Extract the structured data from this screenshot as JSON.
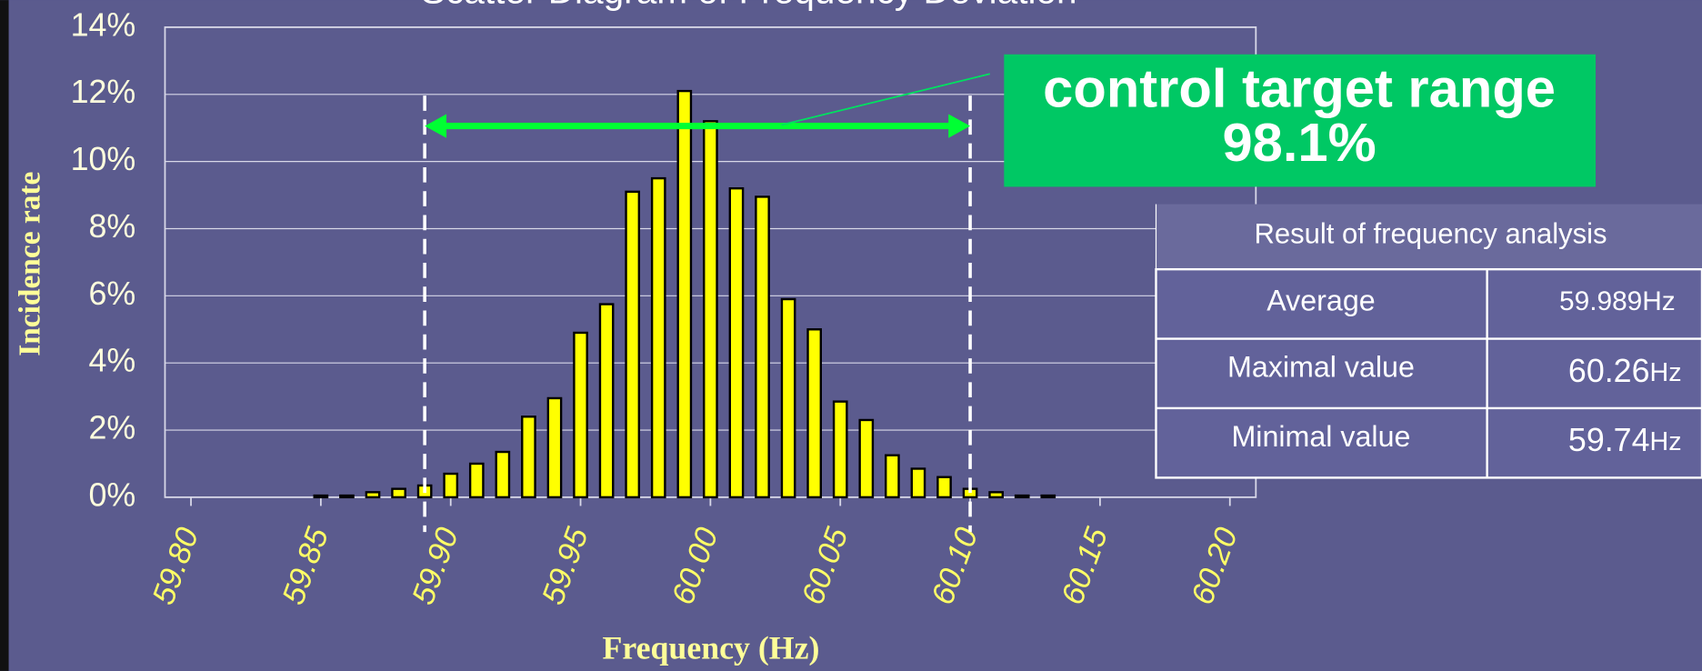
{
  "chart_data": {
    "type": "bar",
    "title": "Scatter Diagram of Frequency Deviation",
    "x_label": "Frequency (Hz)",
    "y_label": "Incidence rate",
    "x": [
      59.85,
      59.86,
      59.87,
      59.88,
      59.89,
      59.9,
      59.91,
      59.92,
      59.93,
      59.94,
      59.95,
      59.96,
      59.97,
      59.98,
      59.99,
      60.0,
      60.01,
      60.02,
      60.03,
      60.04,
      60.05,
      60.06,
      60.07,
      60.08,
      60.09,
      60.1,
      60.11,
      60.12,
      60.13
    ],
    "values": [
      0.05,
      0.05,
      0.15,
      0.25,
      0.35,
      0.7,
      1.0,
      1.35,
      2.4,
      2.95,
      4.9,
      5.75,
      9.1,
      9.5,
      12.1,
      11.2,
      9.2,
      8.95,
      5.9,
      5.0,
      2.85,
      2.3,
      1.25,
      0.85,
      0.6,
      0.25,
      0.15,
      0.05,
      0.05
    ],
    "color": "#ffff00",
    "xlim": [
      59.79,
      60.21
    ],
    "ylim": [
      0,
      14
    ],
    "xticks": [
      {
        "value": 59.8,
        "label": "59.80"
      },
      {
        "value": 59.85,
        "label": "59.85"
      },
      {
        "value": 59.9,
        "label": "59.90"
      },
      {
        "value": 59.95,
        "label": "59.95"
      },
      {
        "value": 60.0,
        "label": "60.00"
      },
      {
        "value": 60.05,
        "label": "60.05"
      },
      {
        "value": 60.1,
        "label": "60.10"
      },
      {
        "value": 60.15,
        "label": "60.15"
      },
      {
        "value": 60.2,
        "label": "60.20"
      }
    ],
    "yticks": [
      {
        "value": 0,
        "label": "0%"
      },
      {
        "value": 2,
        "label": "2%"
      },
      {
        "value": 4,
        "label": "4%"
      },
      {
        "value": 6,
        "label": "6%"
      },
      {
        "value": 8,
        "label": "8%"
      },
      {
        "value": 10,
        "label": "10%"
      },
      {
        "value": 12,
        "label": "12%"
      },
      {
        "value": 14,
        "label": "14%"
      }
    ],
    "grid": true,
    "target_range": [
      59.89,
      60.1
    ],
    "annotation": {
      "title": "control target range",
      "value": "98.1%"
    }
  },
  "table": {
    "title": "Result of frequency analysis",
    "rows": [
      {
        "label": "Average",
        "value": "59.989Hz"
      },
      {
        "label": "Maximal value",
        "value": "60.26",
        "unit": "Hz"
      },
      {
        "label": "Minimal value",
        "value": "59.74",
        "unit": "Hz"
      }
    ]
  }
}
